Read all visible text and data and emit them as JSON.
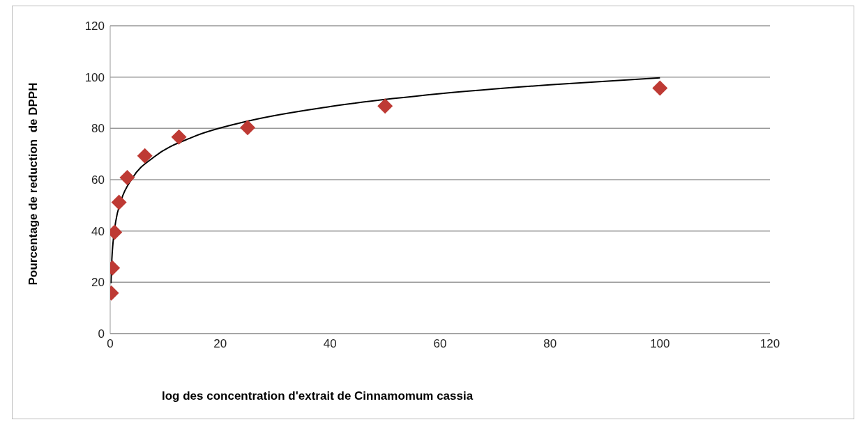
{
  "chart_data": {
    "type": "scatter",
    "xlabel": "log des concentration d'extrait de Cinnamomum cassia",
    "ylabel": "Pourcentage de reduction  de DPPH",
    "xlim": [
      0,
      120
    ],
    "xticks": [
      0,
      20,
      40,
      60,
      80,
      100,
      120
    ],
    "ylim": [
      0,
      120
    ],
    "yticks": [
      0,
      20,
      40,
      60,
      80,
      100,
      120
    ],
    "grid": "y",
    "marker": "diamond",
    "series": [
      {
        "color": "#be3a34",
        "x": [
          0.2,
          0.4,
          0.8,
          1.6,
          3.1,
          6.3,
          12.5,
          25,
          50,
          100
        ],
        "values": [
          15.8,
          25.6,
          39.5,
          51.2,
          60.8,
          69.3,
          76.6,
          80.3,
          88.7,
          95.7
        ]
      },
      {
        "type": "line",
        "color": "#000000",
        "marker": "none",
        "x": [
          0.14,
          0.3,
          0.5,
          1,
          2,
          4,
          8,
          15,
          25,
          40,
          60,
          80,
          100
        ],
        "values": [
          19.6,
          28.9,
          35.1,
          43.6,
          52.0,
          60.5,
          68.9,
          76.6,
          82.8,
          88.5,
          93.5,
          97.0,
          99.7
        ]
      }
    ]
  }
}
